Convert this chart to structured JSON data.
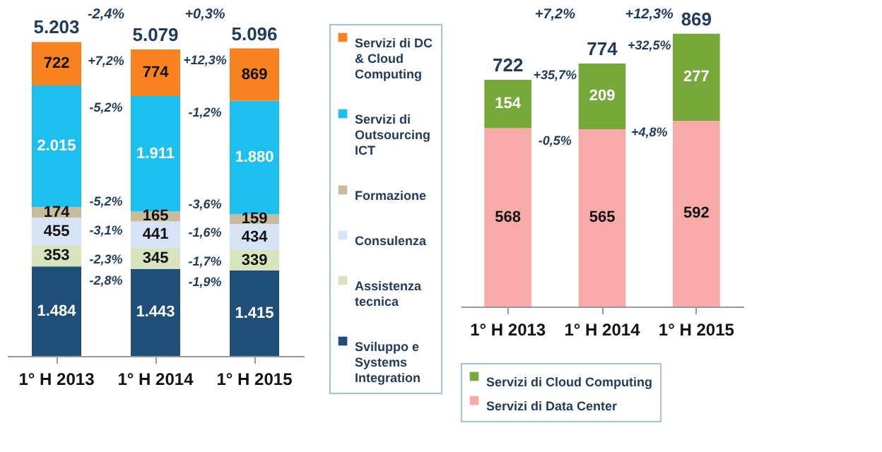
{
  "chart_data": [
    {
      "type": "bar",
      "stacked": true,
      "categories": [
        "1° H 2013",
        "1° H 2014",
        "1° H 2015"
      ],
      "series": [
        {
          "name": "Sviluppo e Systems Integration",
          "color": "#1f4e79",
          "values": [
            1484,
            1443,
            1415
          ],
          "value_labels": [
            "1.484",
            "1.443",
            "1.415"
          ]
        },
        {
          "name": "Assistenza tecnica",
          "color": "#d7e4bd",
          "values": [
            353,
            345,
            339
          ],
          "value_labels": [
            "353",
            "345",
            "339"
          ]
        },
        {
          "name": "Consulenza",
          "color": "#d5e3f5",
          "values": [
            455,
            441,
            434
          ],
          "value_labels": [
            "455",
            "441",
            "434"
          ]
        },
        {
          "name": "Formazione",
          "color": "#c9bc9c",
          "values": [
            174,
            165,
            159
          ],
          "value_labels": [
            "174",
            "165",
            "159"
          ]
        },
        {
          "name": "Servizi di Outsourcing ICT",
          "color": "#1cc0ef",
          "values": [
            2015,
            1911,
            1880
          ],
          "value_labels": [
            "2.015",
            "1.911",
            "1.880"
          ]
        },
        {
          "name": "Servizi di DC & Cloud Computing",
          "color": "#f7821f",
          "values": [
            722,
            774,
            869
          ],
          "value_labels": [
            "722",
            "774",
            "869"
          ]
        }
      ],
      "totals": [
        "5.203",
        "5.079",
        "5.096"
      ],
      "legend": "right",
      "annotations": [
        "-2,4%",
        "+0,3%",
        {
          "text": "+7,2%",
          "x": "1° H 2014",
          "y": 5079
        },
        {
          "text": "-5,2%",
          "x": "1° H 2014",
          "y": 4305
        },
        {
          "text": "-5,2%",
          "x": "1° H 2014",
          "y": 2394
        },
        {
          "text": "-3,1%",
          "x": "1° H 2014",
          "y": 2229
        },
        {
          "text": "-2,3%",
          "x": "1° H 2014",
          "y": 1788
        },
        {
          "text": "-2,8%",
          "x": "1° H 2014",
          "y": 1443
        },
        {
          "text": "+12,3%",
          "x": "1° H 2015",
          "y": 5096
        },
        {
          "text": "-1,2%",
          "x": "1° H 2015",
          "y": 4227
        },
        {
          "text": "-3,6%",
          "x": "1° H 2015",
          "y": 2347
        },
        {
          "text": "-1,6%",
          "x": "1° H 2015",
          "y": 2188
        },
        {
          "text": "-1,7%",
          "x": "1° H 2015",
          "y": 1754
        },
        {
          "text": "-1,9%",
          "x": "1° H 2015",
          "y": 1415
        }
      ]
    },
    {
      "type": "bar",
      "stacked": true,
      "categories": [
        "1° H 2013",
        "1° H 2014",
        "1° H 2015"
      ],
      "series": [
        {
          "name": "Servizi di Data Center",
          "color": "#f7aaa7",
          "values": [
            568,
            565,
            592
          ],
          "value_labels": [
            "568",
            "565",
            "592"
          ]
        },
        {
          "name": "Servizi di Cloud Computing",
          "color": "#77a83a",
          "values": [
            154,
            209,
            277
          ],
          "value_labels": [
            "154",
            "209",
            "277"
          ]
        }
      ],
      "totals": [
        "722",
        "774",
        "869"
      ],
      "legend": "bottom",
      "annotations": [
        "+7,2%",
        "+12,3%",
        {
          "text": "+35,7%",
          "x": "1° H 2014",
          "y": 774
        },
        {
          "text": "-0,5%",
          "x": "1° H 2014",
          "y": 565
        },
        {
          "text": "+32,5%",
          "x": "1° H 2015",
          "y": 869
        },
        {
          "text": "+4,8%",
          "x": "1° H 2015",
          "y": 592
        }
      ]
    }
  ]
}
